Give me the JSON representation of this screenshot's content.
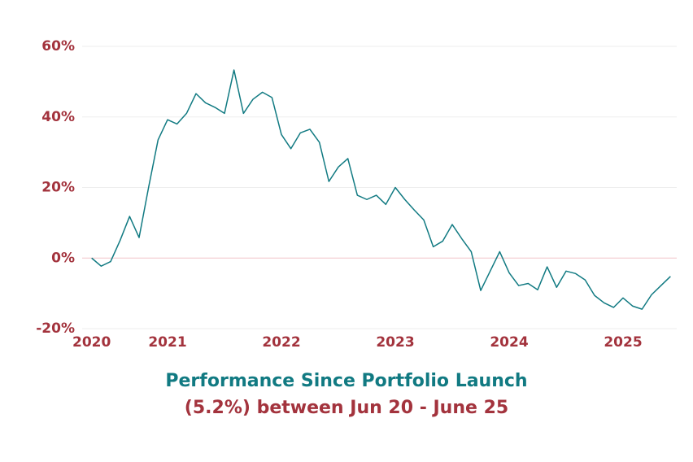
{
  "chart_data": {
    "type": "line",
    "title": "Performance Since Portfolio Launch",
    "subtitle": "(5.2%) between Jun 20 - June 25",
    "x": [
      2020.3333,
      2020.4167,
      2020.5,
      2020.5833,
      2020.6667,
      2020.75,
      2020.8333,
      2020.9167,
      2021,
      2021.0833,
      2021.1667,
      2021.25,
      2021.3333,
      2021.4167,
      2021.5,
      2021.5833,
      2021.6667,
      2021.75,
      2021.8333,
      2021.9167,
      2022,
      2022.0833,
      2022.1667,
      2022.25,
      2022.3333,
      2022.4167,
      2022.5,
      2022.5833,
      2022.6667,
      2022.75,
      2022.8333,
      2022.9167,
      2023,
      2023.0833,
      2023.1667,
      2023.25,
      2023.3333,
      2023.4167,
      2023.5,
      2023.5833,
      2023.6667,
      2023.75,
      2023.8333,
      2023.9167,
      2024,
      2024.0833,
      2024.1667,
      2024.25,
      2024.3333,
      2024.4167,
      2024.5,
      2024.5833,
      2024.6667,
      2024.75,
      2024.8333,
      2024.9167,
      2025,
      2025.0833,
      2025.1667,
      2025.25,
      2025.3333,
      2025.4167
    ],
    "series": [
      {
        "color": "#117a82",
        "values": [
          0,
          -2.3,
          -1,
          5,
          11.8,
          5.8,
          20,
          33.5,
          39.2,
          38,
          41,
          46.6,
          44,
          42.7,
          41,
          53.3,
          41,
          45,
          47,
          45.5,
          35,
          31,
          35.5,
          36.5,
          32.8,
          21.7,
          25.8,
          28.2,
          17.8,
          16.6,
          17.8,
          15.2,
          20,
          16.6,
          13.6,
          10.8,
          3.2,
          4.8,
          9.5,
          5.5,
          1.8,
          -9.2,
          -3.7,
          1.8,
          -4.2,
          -7.8,
          -7.2,
          -9,
          -2.5,
          -8.3,
          -3.7,
          -4.4,
          -6.2,
          -10.6,
          -12.7,
          -14,
          -11.3,
          -13.6,
          -14.5,
          -10.4,
          -7.8,
          -5.2
        ]
      }
    ],
    "xlim": [
      2020.25,
      2025.5
    ],
    "xticks": [
      {
        "value": 2020.3333,
        "label": "2020"
      },
      2021,
      2022,
      2023,
      2024,
      2025
    ],
    "ylim": [
      -20,
      60
    ],
    "yticks": [
      {
        "value": -20,
        "label": "-20%"
      },
      {
        "value": 0,
        "label": "0%"
      },
      {
        "value": 20,
        "label": "20%"
      },
      {
        "value": 40,
        "label": "40%"
      },
      {
        "value": 60,
        "label": "60%"
      }
    ],
    "grid": true
  }
}
